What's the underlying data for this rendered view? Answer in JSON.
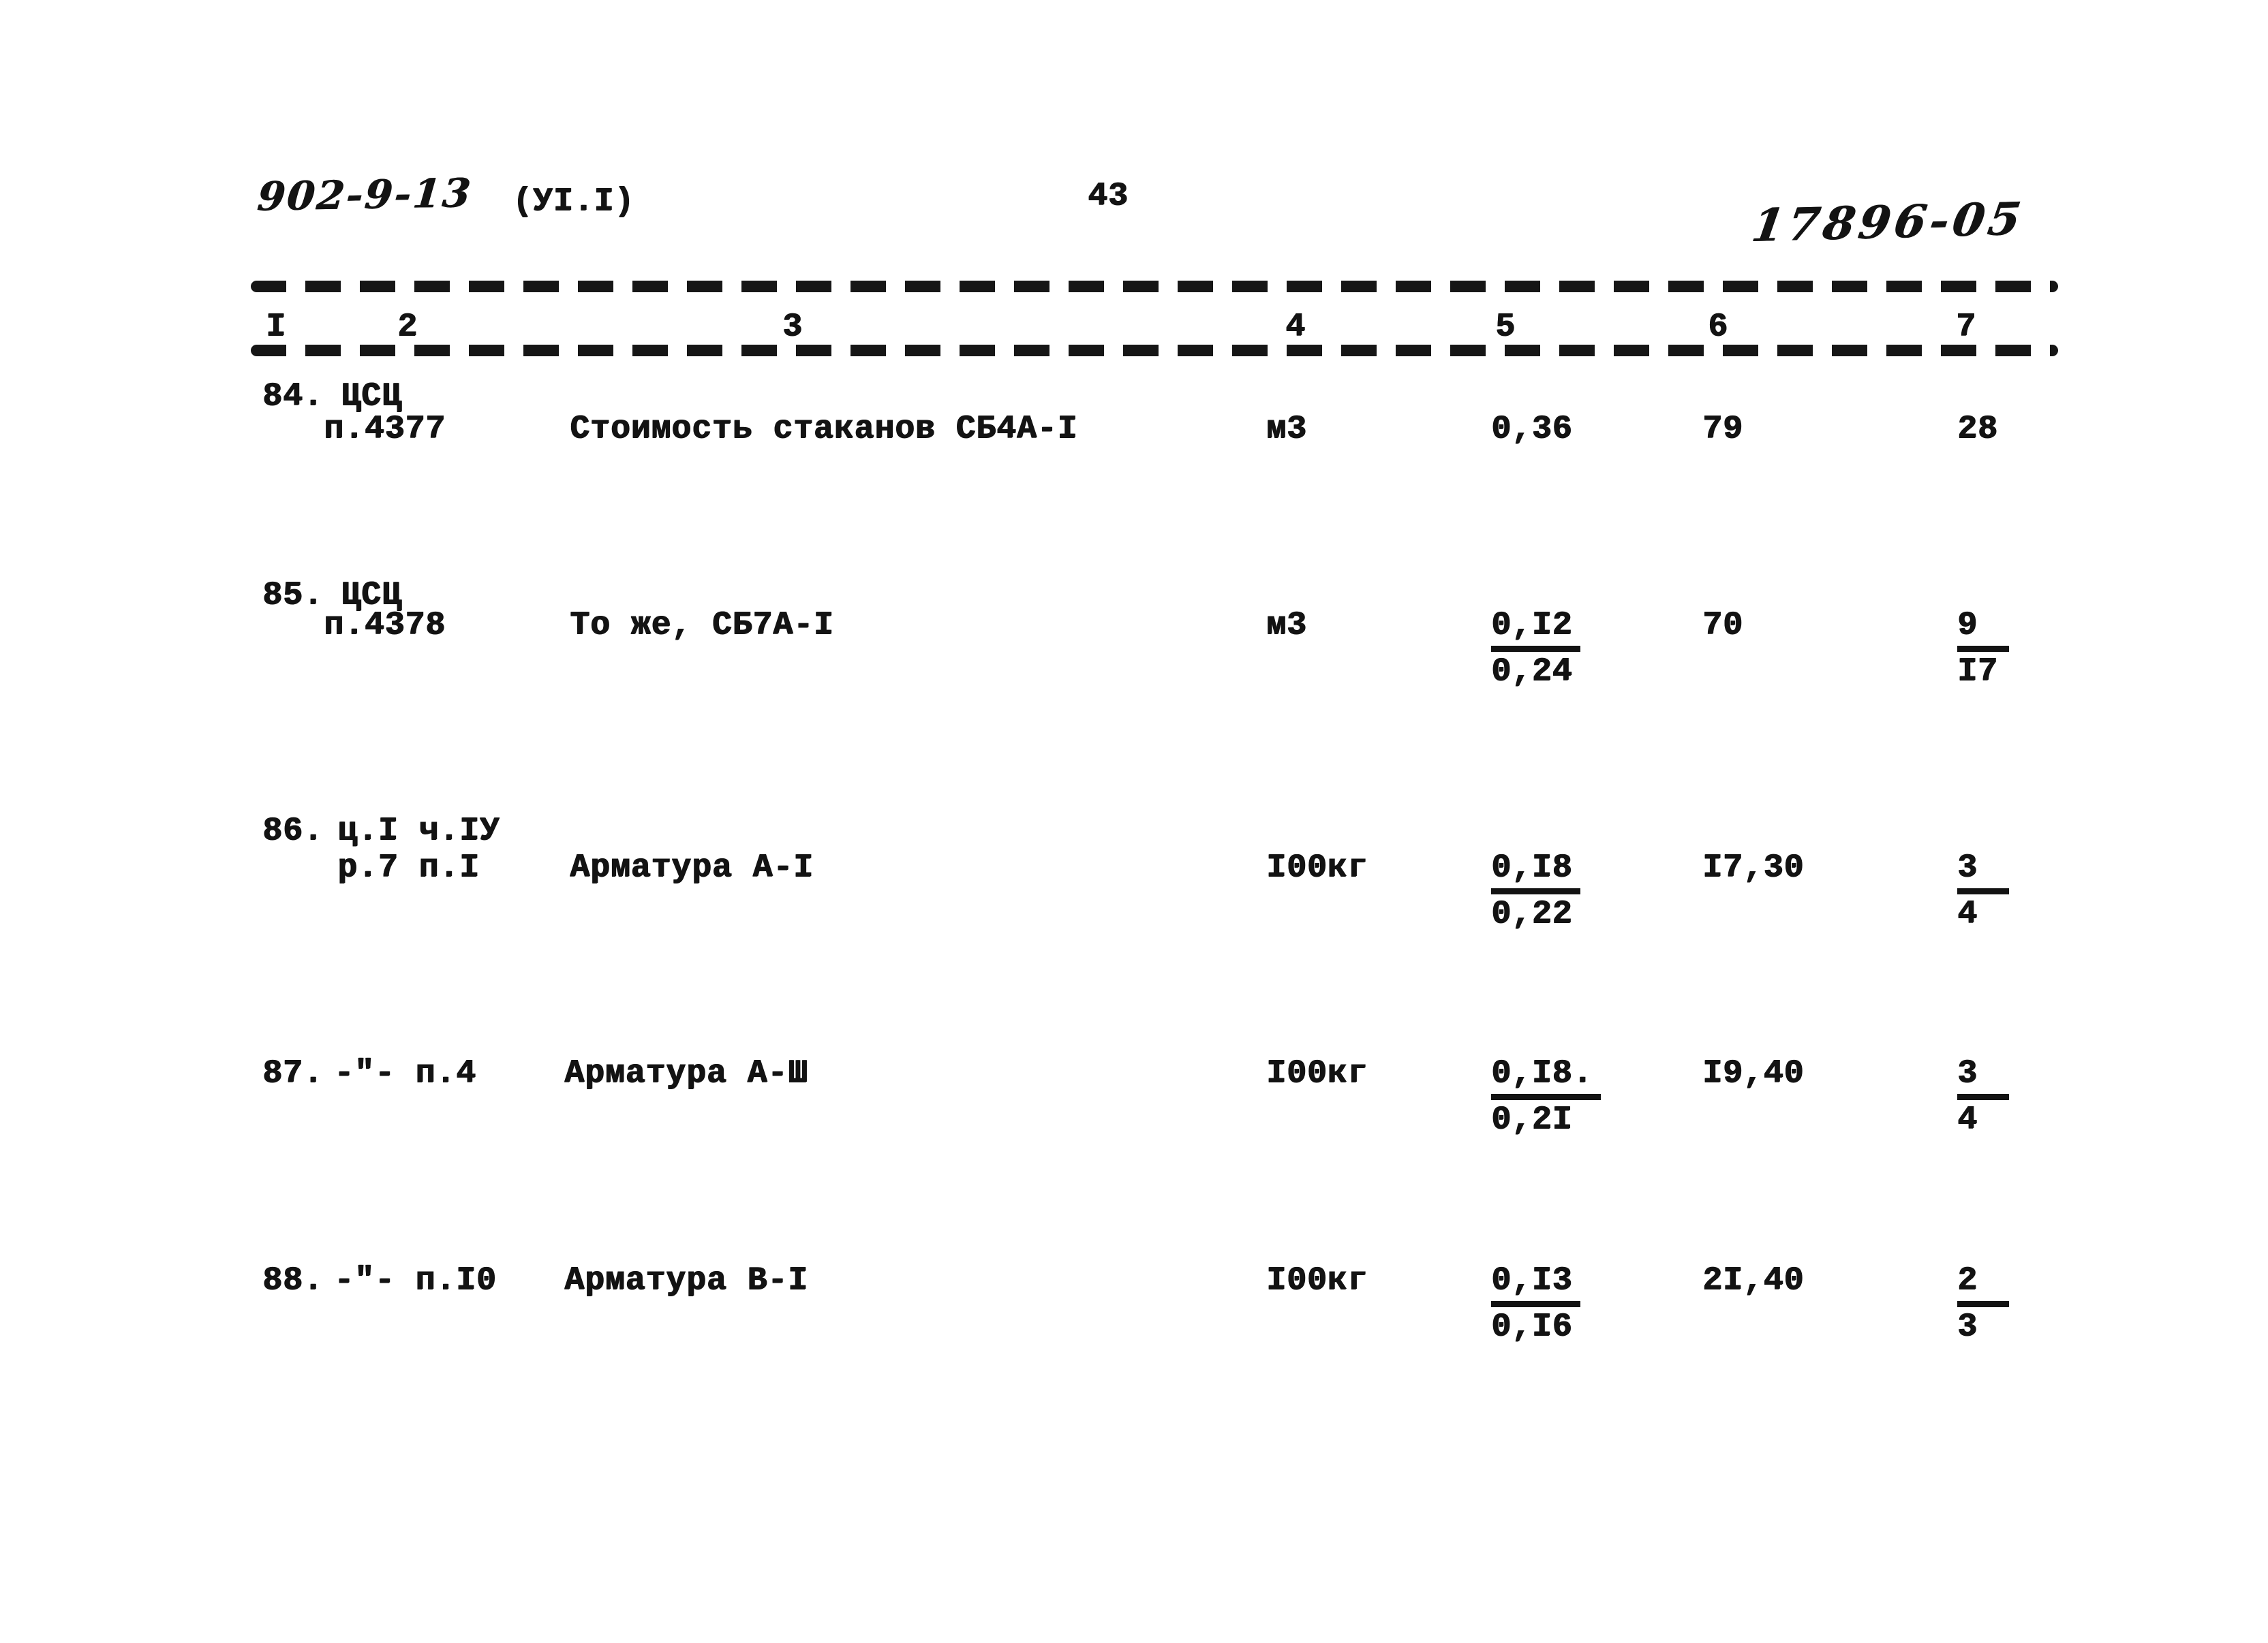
{
  "page_header": {
    "doc_code": "902-9-13",
    "volume": "(УI.I)",
    "page_number": "43",
    "handwritten_code": "17896-05"
  },
  "table": {
    "column_numbers": [
      "I",
      "2",
      "3",
      "4",
      "5",
      "6",
      "7"
    ],
    "rows": [
      {
        "num": "84.",
        "ref_line1": "ЦСЦ",
        "ref_line2": "п.4377",
        "name": "Стоимость стаканов СБ4А-I",
        "unit": "м3",
        "qty": {
          "num": "0,36",
          "den": ""
        },
        "unit_price": "79",
        "total": {
          "num": "28",
          "den": ""
        }
      },
      {
        "num": "85.",
        "ref_line1": "ЦСЦ",
        "ref_line2": "п.4378",
        "name": "То же, СБ7А-I",
        "unit": "м3",
        "qty": {
          "num": "0,I2",
          "den": "0,24"
        },
        "unit_price": "70",
        "total": {
          "num": "9",
          "den": "I7"
        }
      },
      {
        "num": "86.",
        "ref_line1": "ц.I ч.IУ",
        "ref_line2": "р.7 п.I",
        "name": "Арматура А-I",
        "unit": "I00кг",
        "qty": {
          "num": "0,I8",
          "den": "0,22"
        },
        "unit_price": "I7,30",
        "total": {
          "num": "3",
          "den": "4"
        }
      },
      {
        "num": "87.",
        "ref_line1": "-\"- п.4",
        "ref_line2": "",
        "name": "Арматура А-Ш",
        "unit": "I00кг",
        "qty": {
          "num": "0,I8.",
          "den": "0,2I"
        },
        "unit_price": "I9,40",
        "total": {
          "num": "3",
          "den": "4"
        }
      },
      {
        "num": "88.",
        "ref_line1": "-\"- п.I0",
        "ref_line2": "",
        "name": "Арматура В-I",
        "unit": "I00кг",
        "qty": {
          "num": "0,I3",
          "den": "0,I6"
        },
        "unit_price": "2I,40",
        "total": {
          "num": "2",
          "den": "3"
        }
      }
    ]
  }
}
